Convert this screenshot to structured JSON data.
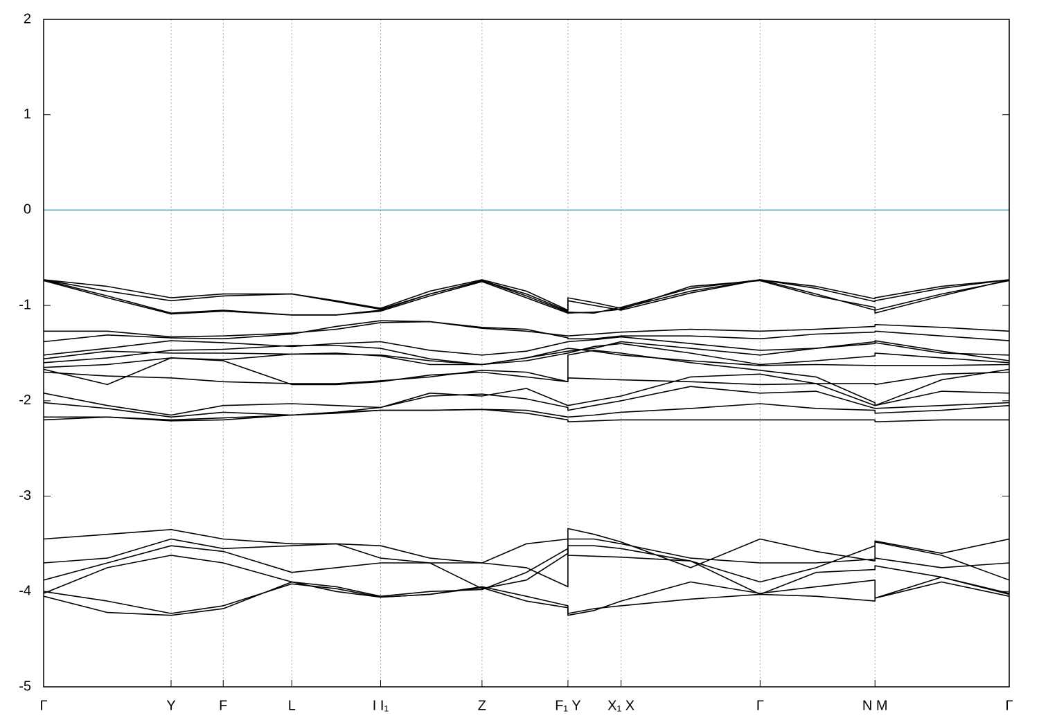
{
  "chart_data": {
    "type": "line",
    "x": [
      0,
      0.066,
      0.132,
      0.186,
      0.257,
      0.303,
      0.349,
      0.4,
      0.454,
      0.5,
      0.543,
      0.543,
      0.57,
      0.598,
      0.67,
      0.742,
      0.8,
      0.861,
      0.861,
      0.93,
      1.0
    ],
    "xlim": [
      0,
      1
    ],
    "xticks": [
      {
        "value": 0,
        "label": "Γ"
      },
      {
        "value": 0.132,
        "label": "Y"
      },
      {
        "value": 0.186,
        "label": "F"
      },
      {
        "value": 0.257,
        "label": "L"
      },
      {
        "value": 0.349,
        "label": "I I₁"
      },
      {
        "value": 0.454,
        "label": "Z"
      },
      {
        "value": 0.543,
        "label": "F₁ Y"
      },
      {
        "value": 0.598,
        "label": "X₁ X"
      },
      {
        "value": 0.742,
        "label": "Γ"
      },
      {
        "value": 0.861,
        "label": "N M"
      },
      {
        "value": 1.0,
        "label": "Γ"
      }
    ],
    "ylim": [
      -5,
      2
    ],
    "yticks": [
      -5,
      -4,
      -3,
      -2,
      -1,
      0,
      1,
      2
    ],
    "grid": true,
    "hline": {
      "value": 0,
      "color": "#3ea8c8"
    },
    "series": [
      {
        "color": "#000000",
        "values": [
          -0.73,
          -0.8,
          -0.92,
          -0.88,
          -0.88,
          -0.95,
          -1.03,
          -0.85,
          -0.73,
          -0.85,
          -1.05,
          -0.92,
          -0.97,
          -1.03,
          -0.85,
          -0.73,
          -0.8,
          -0.93,
          -0.92,
          -0.8,
          -0.73
        ]
      },
      {
        "color": "#000000",
        "values": [
          -0.73,
          -0.85,
          -0.95,
          -0.9,
          -0.88,
          -0.96,
          -1.04,
          -0.88,
          -0.74,
          -0.88,
          -1.06,
          -0.95,
          -1.0,
          -1.05,
          -0.87,
          -0.73,
          -0.82,
          -0.96,
          -0.95,
          -0.82,
          -0.73
        ]
      },
      {
        "color": "#000000",
        "values": [
          -0.73,
          -0.9,
          -1.08,
          -1.05,
          -1.1,
          -1.1,
          -1.05,
          -0.88,
          -0.74,
          -0.9,
          -1.07,
          -1.07,
          -1.08,
          -1.02,
          -0.82,
          -0.73,
          -0.88,
          -1.05,
          -1.08,
          -0.9,
          -0.73
        ]
      },
      {
        "color": "#000000",
        "values": [
          -0.74,
          -0.92,
          -1.09,
          -1.06,
          -1.1,
          -1.1,
          -1.06,
          -0.9,
          -0.75,
          -0.92,
          -1.08,
          -1.08,
          -1.07,
          -1.04,
          -0.8,
          -0.74,
          -0.9,
          -1.02,
          -1.05,
          -0.88,
          -0.74
        ]
      },
      {
        "color": "#000000",
        "values": [
          -1.27,
          -1.27,
          -1.33,
          -1.32,
          -1.29,
          -1.25,
          -1.18,
          -1.17,
          -1.24,
          -1.27,
          -1.32,
          -1.32,
          -1.3,
          -1.28,
          -1.25,
          -1.27,
          -1.25,
          -1.22,
          -1.2,
          -1.23,
          -1.27
        ]
      },
      {
        "color": "#000000",
        "values": [
          -1.38,
          -1.31,
          -1.34,
          -1.35,
          -1.3,
          -1.22,
          -1.16,
          -1.17,
          -1.23,
          -1.25,
          -1.34,
          -1.35,
          -1.35,
          -1.32,
          -1.32,
          -1.35,
          -1.3,
          -1.28,
          -1.27,
          -1.32,
          -1.37
        ]
      },
      {
        "color": "#000000",
        "values": [
          -1.52,
          -1.45,
          -1.37,
          -1.39,
          -1.43,
          -1.4,
          -1.38,
          -1.47,
          -1.52,
          -1.48,
          -1.38,
          -1.38,
          -1.36,
          -1.33,
          -1.4,
          -1.47,
          -1.45,
          -1.4,
          -1.39,
          -1.5,
          -1.52
        ]
      },
      {
        "color": "#000000",
        "values": [
          -1.56,
          -1.48,
          -1.5,
          -1.5,
          -1.51,
          -1.51,
          -1.52,
          -1.58,
          -1.62,
          -1.55,
          -1.48,
          -1.48,
          -1.45,
          -1.38,
          -1.45,
          -1.52,
          -1.45,
          -1.38,
          -1.37,
          -1.48,
          -1.58
        ]
      },
      {
        "color": "#000000",
        "values": [
          -1.6,
          -1.55,
          -1.47,
          -1.46,
          -1.42,
          -1.42,
          -1.45,
          -1.56,
          -1.62,
          -1.58,
          -1.5,
          -1.5,
          -1.43,
          -1.4,
          -1.5,
          -1.62,
          -1.58,
          -1.53,
          -1.5,
          -1.55,
          -1.6
        ]
      },
      {
        "color": "#000000",
        "values": [
          -1.65,
          -1.62,
          -1.55,
          -1.57,
          -1.51,
          -1.5,
          -1.53,
          -1.62,
          -1.62,
          -1.55,
          -1.45,
          -1.45,
          -1.48,
          -1.52,
          -1.58,
          -1.63,
          -1.62,
          -1.63,
          -1.63,
          -1.63,
          -1.62
        ]
      },
      {
        "color": "#000000",
        "values": [
          -1.7,
          -1.74,
          -1.76,
          -1.8,
          -1.82,
          -1.82,
          -1.79,
          -1.75,
          -1.68,
          -1.7,
          -1.8,
          -1.76,
          -1.77,
          -1.78,
          -1.8,
          -1.83,
          -1.82,
          -1.82,
          -1.83,
          -1.72,
          -1.7
        ]
      },
      {
        "color": "#000000",
        "values": [
          -1.67,
          -1.83,
          -1.55,
          -1.58,
          -1.83,
          -1.83,
          -1.8,
          -1.73,
          -1.7,
          -1.75,
          -1.8,
          -1.52,
          -1.47,
          -1.5,
          -1.6,
          -1.68,
          -1.75,
          -2.02,
          -2.05,
          -1.78,
          -1.67
        ]
      },
      {
        "color": "#000000",
        "values": [
          -1.92,
          -2.05,
          -2.15,
          -2.05,
          -2.03,
          -2.05,
          -2.07,
          -1.92,
          -1.95,
          -1.87,
          -2.05,
          -2.05,
          -2.0,
          -1.95,
          -1.75,
          -1.72,
          -1.82,
          -2.05,
          -2.05,
          -1.9,
          -1.92
        ]
      },
      {
        "color": "#000000",
        "values": [
          -2.02,
          -2.08,
          -2.17,
          -2.12,
          -2.15,
          -2.12,
          -2.07,
          -1.95,
          -1.93,
          -1.98,
          -2.07,
          -2.1,
          -2.05,
          -2.0,
          -1.85,
          -1.92,
          -1.9,
          -2.08,
          -2.08,
          -2.05,
          -2.02
        ]
      },
      {
        "color": "#000000",
        "values": [
          -2.2,
          -2.17,
          -2.2,
          -2.18,
          -2.15,
          -2.13,
          -2.1,
          -2.1,
          -2.09,
          -2.1,
          -2.17,
          -2.17,
          -2.15,
          -2.12,
          -2.08,
          -2.03,
          -2.08,
          -2.1,
          -2.13,
          -2.1,
          -2.05
        ]
      },
      {
        "color": "#000000",
        "values": [
          -2.17,
          -2.17,
          -2.21,
          -2.2,
          -2.15,
          -2.12,
          -2.1,
          -2.1,
          -2.09,
          -2.13,
          -2.2,
          -2.22,
          -2.21,
          -2.2,
          -2.2,
          -2.2,
          -2.2,
          -2.2,
          -2.22,
          -2.2,
          -2.2
        ]
      },
      {
        "color": "#000000",
        "values": [
          -3.45,
          -3.4,
          -3.35,
          -3.45,
          -3.5,
          -3.5,
          -3.52,
          -3.65,
          -3.7,
          -3.5,
          -3.45,
          -3.34,
          -3.4,
          -3.48,
          -3.75,
          -3.45,
          -3.58,
          -3.68,
          -3.47,
          -3.6,
          -3.45
        ]
      },
      {
        "color": "#000000",
        "values": [
          -3.7,
          -3.65,
          -3.45,
          -3.55,
          -3.52,
          -3.5,
          -3.65,
          -3.7,
          -3.7,
          -3.75,
          -3.95,
          -3.45,
          -3.45,
          -3.5,
          -3.65,
          -3.7,
          -3.7,
          -3.66,
          -3.65,
          -3.75,
          -3.7
        ]
      },
      {
        "color": "#000000",
        "values": [
          -3.88,
          -3.7,
          -3.52,
          -3.58,
          -3.8,
          -3.75,
          -3.7,
          -3.7,
          -3.97,
          -3.88,
          -3.6,
          -3.52,
          -3.52,
          -3.55,
          -3.68,
          -3.9,
          -3.75,
          -3.52,
          -3.48,
          -3.62,
          -3.88
        ]
      },
      {
        "color": "#000000",
        "values": [
          -4.02,
          -3.75,
          -3.62,
          -3.7,
          -3.9,
          -3.95,
          -4.05,
          -4.0,
          -3.98,
          -3.8,
          -3.55,
          -3.62,
          -3.63,
          -3.64,
          -3.68,
          -4.03,
          -3.8,
          -3.77,
          -3.73,
          -3.85,
          -4.02
        ]
      },
      {
        "color": "#000000",
        "values": [
          -4.0,
          -4.1,
          -4.23,
          -4.15,
          -3.92,
          -3.97,
          -4.06,
          -4.03,
          -3.95,
          -4.05,
          -4.15,
          -4.25,
          -4.2,
          -4.1,
          -3.9,
          -4.02,
          -3.95,
          -3.88,
          -4.07,
          -3.85,
          -4.03
        ]
      },
      {
        "color": "#000000",
        "values": [
          -4.05,
          -4.22,
          -4.25,
          -4.18,
          -3.9,
          -4.0,
          -4.06,
          -4.03,
          -3.96,
          -4.1,
          -4.17,
          -4.23,
          -4.18,
          -4.15,
          -4.08,
          -4.03,
          -4.05,
          -4.1,
          -4.07,
          -3.9,
          -4.05
        ]
      }
    ]
  }
}
